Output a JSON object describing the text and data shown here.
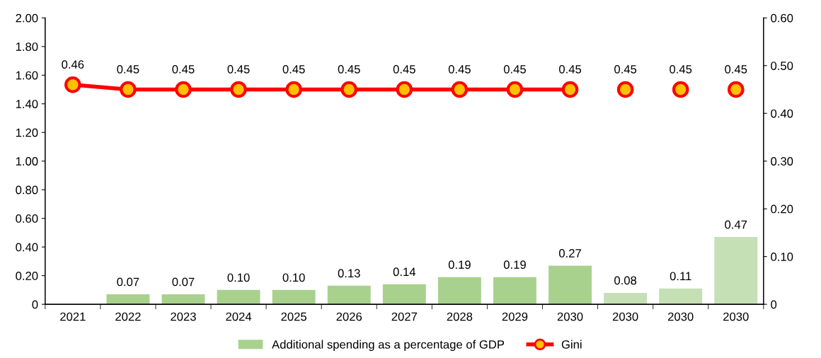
{
  "chart_data": {
    "type": "bar",
    "categories": [
      "2021",
      "2022",
      "2023",
      "2024",
      "2025",
      "2026",
      "2027",
      "2028",
      "2029",
      "2030",
      "2030",
      "2030",
      "2030"
    ],
    "series": [
      {
        "name": "Additional spending as a percentage of GDP",
        "colors": [
          "#a9d18e",
          "#a9d18e",
          "#a9d18e",
          "#a9d18e",
          "#a9d18e",
          "#a9d18e",
          "#a9d18e",
          "#a9d18e",
          "#a9d18e",
          "#a9d18e",
          "#c5e0b4",
          "#c5e0b4",
          "#c5e0b4"
        ],
        "color": "#a9d18e",
        "values": [
          null,
          0.07,
          0.07,
          0.1,
          0.1,
          0.13,
          0.14,
          0.19,
          0.19,
          0.27,
          0.08,
          0.11,
          0.47
        ],
        "value_labels": [
          null,
          "0.07",
          "0.07",
          "0.10",
          "0.10",
          "0.13",
          "0.14",
          "0.19",
          "0.19",
          "0.27",
          "0.08",
          "0.11",
          "0.47"
        ]
      },
      {
        "name": "Gini",
        "type": "line",
        "axis": "y2",
        "color": "#ff0000",
        "marker": "circle",
        "values": [
          0.46,
          0.45,
          0.45,
          0.45,
          0.45,
          0.45,
          0.45,
          0.45,
          0.45,
          0.45,
          null,
          null,
          null
        ],
        "value_labels": [
          "0.46",
          "0.45",
          "0.45",
          "0.45",
          "0.45",
          "0.45",
          "0.45",
          "0.45",
          "0.45",
          "0.45",
          null,
          null,
          null
        ]
      },
      {
        "type": "scatter",
        "axis": "y2",
        "color": "#ff0000",
        "marker": "circle",
        "values": [
          null,
          null,
          null,
          null,
          null,
          null,
          null,
          null,
          null,
          null,
          0.45,
          0.45,
          0.45
        ],
        "value_labels": [
          null,
          null,
          null,
          null,
          null,
          null,
          null,
          null,
          null,
          null,
          "0.45",
          "0.45",
          "0.45"
        ]
      }
    ],
    "ylim": [
      0,
      2
    ],
    "yticks": [
      0,
      {
        "value": 0.2,
        "label": "0.20"
      },
      {
        "value": 0.4,
        "label": "0.40"
      },
      {
        "value": 0.6,
        "label": "0.60"
      },
      {
        "value": 0.8,
        "label": "0.80"
      },
      {
        "value": 1,
        "label": "1.00"
      },
      {
        "value": 1.2,
        "label": "1.20"
      },
      {
        "value": 1.4,
        "label": "1.40"
      },
      {
        "value": 1.6,
        "label": "1.60"
      },
      {
        "value": 1.8,
        "label": "1.80"
      },
      {
        "value": 2,
        "label": "2.00"
      }
    ],
    "y2lim": [
      0,
      0.6
    ],
    "y2ticks": [
      0,
      {
        "value": 0.1,
        "label": "0.10"
      },
      {
        "value": 0.2,
        "label": "0.20"
      },
      {
        "value": 0.3,
        "label": "0.30"
      },
      {
        "value": 0.4,
        "label": "0.40"
      },
      {
        "value": 0.5,
        "label": "0.50"
      },
      {
        "value": 0.6,
        "label": "0.60"
      }
    ],
    "legend": "bottom",
    "grid": false
  }
}
